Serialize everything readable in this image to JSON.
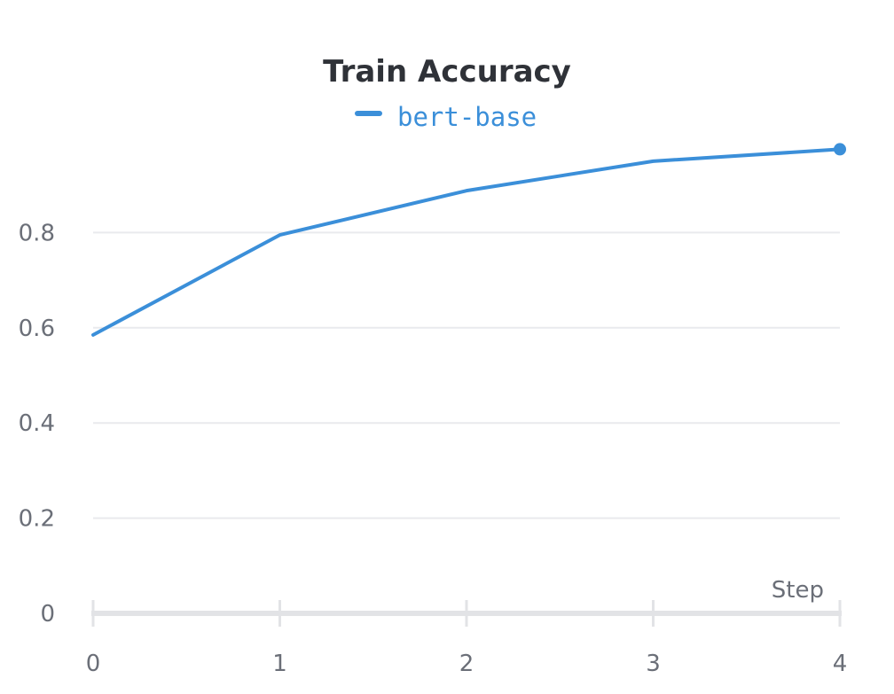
{
  "chart_data": {
    "type": "line",
    "title": "Train Accuracy",
    "xlabel": "Step",
    "ylabel": "",
    "xlim": [
      0,
      4
    ],
    "ylim": [
      0,
      1
    ],
    "x_ticks": [
      "0",
      "1",
      "2",
      "3",
      "4"
    ],
    "y_ticks": [
      "0",
      "0.2",
      "0.4",
      "0.6",
      "0.8"
    ],
    "grid": "horizontal",
    "legend": "top-center",
    "x": [
      0,
      1,
      2,
      3,
      4
    ],
    "series": [
      {
        "name": "bert-base",
        "color": "#3b8fd9",
        "values": [
          0.585,
          0.795,
          0.888,
          0.95,
          0.975
        ]
      }
    ]
  }
}
